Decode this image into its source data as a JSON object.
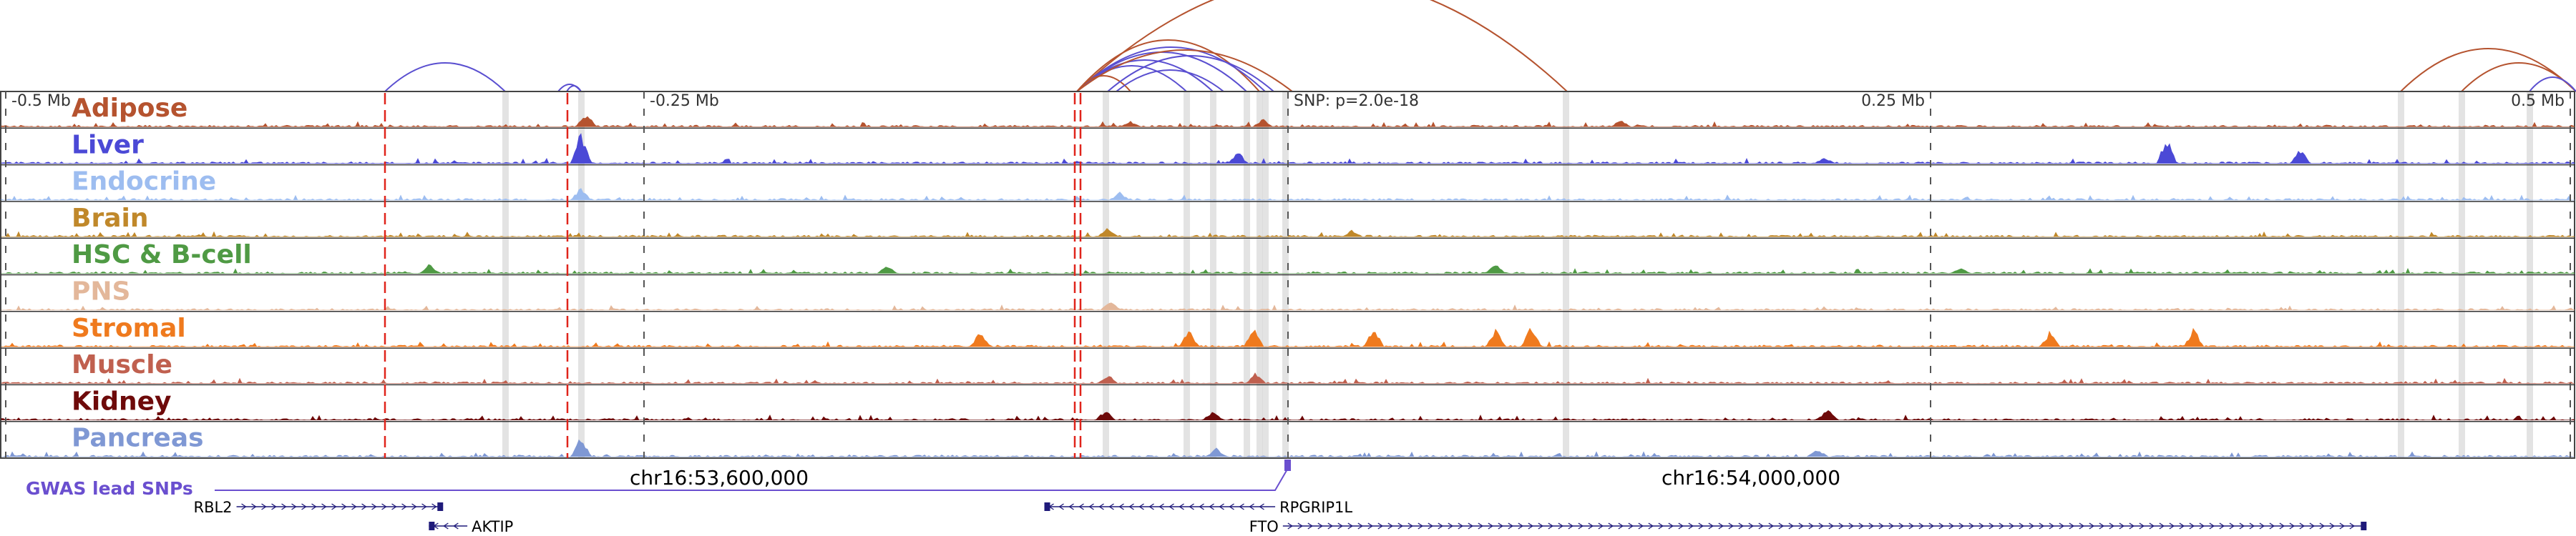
{
  "tracks": [
    {
      "label": "Adipose",
      "color": "#b5532f"
    },
    {
      "label": "Liver",
      "color": "#4b49d6"
    },
    {
      "label": "Endocrine",
      "color": "#9dbdf0"
    },
    {
      "label": "Brain",
      "color": "#c0882a"
    },
    {
      "label": "HSC & B-cell",
      "color": "#4f9a44"
    },
    {
      "label": "PNS",
      "color": "#e3b79a"
    },
    {
      "label": "Stromal",
      "color": "#ef7a1e"
    },
    {
      "label": "Muscle",
      "color": "#c0604f"
    },
    {
      "label": "Kidney",
      "color": "#6e0a0a"
    },
    {
      "label": "Pancreas",
      "color": "#7f98d4"
    }
  ],
  "axis": {
    "ticks": [
      {
        "label": "-0.5 Mb",
        "value": -0.5
      },
      {
        "label": "-0.25 Mb",
        "value": -0.25
      },
      {
        "label": "SNP: p=2.0e-18",
        "value": 0
      },
      {
        "label": "0.25 Mb",
        "value": 0.25
      },
      {
        "label": "0.5 Mb",
        "value": 0.5
      }
    ]
  },
  "coordinates": {
    "left": "chr16:53,600,000",
    "right": "chr16:54,000,000"
  },
  "gwas_label": "GWAS lead SNPs",
  "genes": [
    {
      "name": "RBL2",
      "strand": "+",
      "start_mb": -0.41,
      "end_mb": -0.33,
      "row": 0,
      "label_side": "left"
    },
    {
      "name": "AKTIP",
      "strand": "-",
      "start_mb": -0.335,
      "end_mb": -0.32,
      "row": 1,
      "label_side": "right"
    },
    {
      "name": "RPGRIP1L",
      "strand": "-",
      "start_mb": -0.095,
      "end_mb": -0.005,
      "row": 0,
      "label_side": "right"
    },
    {
      "name": "FTO",
      "strand": "+",
      "start_mb": -0.002,
      "end_mb": 0.42,
      "row": 1,
      "label_side": "left"
    }
  ],
  "colors": {
    "red_marker": "#e0241b",
    "gray_highlight": "#d9d9d9",
    "loop_blue": "#5a4fd0",
    "loop_brown": "#b5532f",
    "gwas": "#6a4fcf",
    "gene": "#1f1a7a"
  }
}
